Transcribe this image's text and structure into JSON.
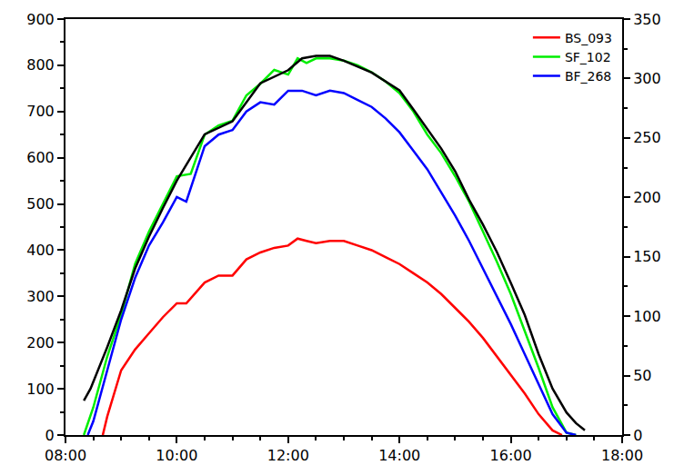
{
  "chart_data": {
    "type": "line",
    "xlim": [
      8,
      18
    ],
    "xticks": [
      {
        "value": 8,
        "label": "08:00"
      },
      {
        "value": 10,
        "label": "10:00"
      },
      {
        "value": 12,
        "label": "12:00"
      },
      {
        "value": 14,
        "label": "14:00"
      },
      {
        "value": 16,
        "label": "16:00"
      },
      {
        "value": 18,
        "label": "18:00"
      }
    ],
    "ylim": [
      0,
      900
    ],
    "yticks": [
      0,
      100,
      200,
      300,
      400,
      500,
      600,
      700,
      800,
      900
    ],
    "y2lim": [
      0,
      350
    ],
    "y2ticks": [
      0,
      50,
      100,
      150,
      200,
      250,
      300,
      350
    ],
    "grid": false,
    "legend": "upper right",
    "series": [
      {
        "color": "#000000",
        "axis": "y2",
        "x": [
          8.33,
          8.45,
          8.75,
          9,
          9.25,
          9.5,
          9.75,
          10,
          10.5,
          11,
          11.5,
          12,
          12.25,
          12.5,
          12.75,
          13,
          13.5,
          14,
          14.25,
          14.5,
          14.75,
          15,
          15.25,
          15.5,
          15.75,
          16,
          16.25,
          16.5,
          16.75,
          17,
          17.17,
          17.33
        ],
        "values": [
          29,
          39,
          74,
          105,
          140,
          167,
          191,
          214,
          253,
          264,
          296,
          307,
          317,
          319,
          319,
          315,
          305,
          290,
          274,
          257,
          241,
          222,
          198,
          177,
          154,
          128,
          101,
          68,
          39,
          19,
          10,
          4
        ]
      },
      {
        "name": "BS_093",
        "color": "#ff0000",
        "x": [
          8.67,
          8.75,
          9,
          9.25,
          9.5,
          9.75,
          10,
          10.17,
          10.5,
          10.75,
          11,
          11.25,
          11.5,
          11.75,
          12,
          12.17,
          12.33,
          12.5,
          12.75,
          13,
          13.25,
          13.5,
          13.75,
          14,
          14.25,
          14.5,
          14.75,
          15,
          15.25,
          15.5,
          15.75,
          16,
          16.25,
          16.5,
          16.75,
          16.92
        ],
        "values": [
          0,
          40,
          140,
          185,
          220,
          255,
          285,
          285,
          330,
          345,
          345,
          380,
          395,
          405,
          410,
          425,
          420,
          415,
          420,
          420,
          410,
          400,
          385,
          370,
          350,
          330,
          305,
          275,
          245,
          210,
          170,
          130,
          90,
          45,
          10,
          0
        ]
      },
      {
        "name": "SF_102",
        "color": "#00ee00",
        "x": [
          8.33,
          8.5,
          8.75,
          9,
          9.25,
          9.5,
          9.75,
          10,
          10.25,
          10.5,
          10.75,
          11,
          11.25,
          11.5,
          11.75,
          12,
          12.17,
          12.33,
          12.5,
          12.75,
          13,
          13.25,
          13.5,
          13.75,
          14,
          14.25,
          14.5,
          14.75,
          15,
          15.25,
          15.5,
          15.75,
          16,
          16.25,
          16.5,
          16.75,
          17,
          17.17
        ],
        "values": [
          0,
          60,
          170,
          260,
          370,
          440,
          500,
          560,
          565,
          650,
          670,
          680,
          735,
          760,
          790,
          780,
          815,
          805,
          815,
          815,
          810,
          800,
          785,
          765,
          740,
          700,
          650,
          610,
          560,
          505,
          440,
          375,
          305,
          225,
          145,
          60,
          5,
          0
        ]
      },
      {
        "name": "BF_268",
        "color": "#0000ff",
        "x": [
          8.4,
          8.5,
          8.75,
          9,
          9.25,
          9.5,
          9.75,
          10,
          10.17,
          10.5,
          10.75,
          11,
          11.25,
          11.5,
          11.75,
          12,
          12.25,
          12.5,
          12.75,
          13,
          13.25,
          13.5,
          13.75,
          14,
          14.25,
          14.5,
          14.75,
          15,
          15.25,
          15.5,
          15.75,
          16,
          16.25,
          16.5,
          16.75,
          17,
          17.17
        ],
        "values": [
          0,
          30,
          140,
          250,
          340,
          410,
          460,
          515,
          505,
          625,
          650,
          660,
          700,
          720,
          715,
          745,
          745,
          735,
          745,
          740,
          725,
          710,
          685,
          655,
          615,
          575,
          525,
          475,
          420,
          360,
          300,
          240,
          175,
          110,
          45,
          5,
          0
        ]
      }
    ]
  }
}
